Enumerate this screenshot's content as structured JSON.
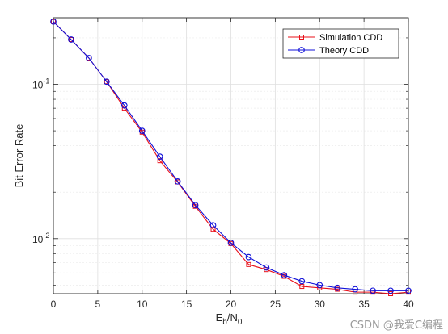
{
  "chart_data": {
    "type": "line",
    "xlabel_main": "E",
    "xlabel_sub1": "b",
    "xlabel_mid": "/N",
    "xlabel_sub2": "0",
    "ylabel": "Bit Error Rate",
    "xlim": [
      0,
      40
    ],
    "ylim": [
      0.0044,
      0.27
    ],
    "y_scale": "log",
    "grid": true,
    "minor_grid": true,
    "legend_position": "top-right",
    "x_ticks": [
      0,
      5,
      10,
      15,
      20,
      25,
      30,
      35,
      40
    ],
    "x_tick_labels": [
      "0",
      "5",
      "10",
      "15",
      "20",
      "25",
      "30",
      "35",
      "40"
    ],
    "y_ticks": [
      0.01,
      0.1
    ],
    "y_tick_base": "10",
    "y_tick_exponents": [
      "-2",
      "-1"
    ],
    "x": [
      0,
      2,
      4,
      6,
      8,
      10,
      12,
      14,
      16,
      18,
      20,
      22,
      24,
      26,
      28,
      30,
      32,
      34,
      36,
      38,
      40
    ],
    "series": [
      {
        "name": "Simulation CDD",
        "color": "#e8101a",
        "marker": "square",
        "values": [
          0.255,
          0.195,
          0.148,
          0.104,
          0.07,
          0.049,
          0.032,
          0.0233,
          0.0162,
          0.0115,
          0.0093,
          0.0068,
          0.0063,
          0.0057,
          0.0049,
          0.0048,
          0.0047,
          0.0045,
          0.0045,
          0.0044,
          0.0045
        ]
      },
      {
        "name": "Theory CDD",
        "color": "#1010d8",
        "marker": "circle",
        "values": [
          0.255,
          0.195,
          0.148,
          0.104,
          0.073,
          0.05,
          0.034,
          0.0235,
          0.0165,
          0.0122,
          0.0094,
          0.0076,
          0.0065,
          0.0058,
          0.0053,
          0.005,
          0.0048,
          0.0047,
          0.0046,
          0.0046,
          0.0046
        ]
      }
    ]
  },
  "watermark": "CSDN @我爱C编程",
  "colors": {
    "axis": "#262626",
    "grid": "#dfdfdf",
    "minor_grid": "#ececec",
    "background": "#ffffff"
  }
}
